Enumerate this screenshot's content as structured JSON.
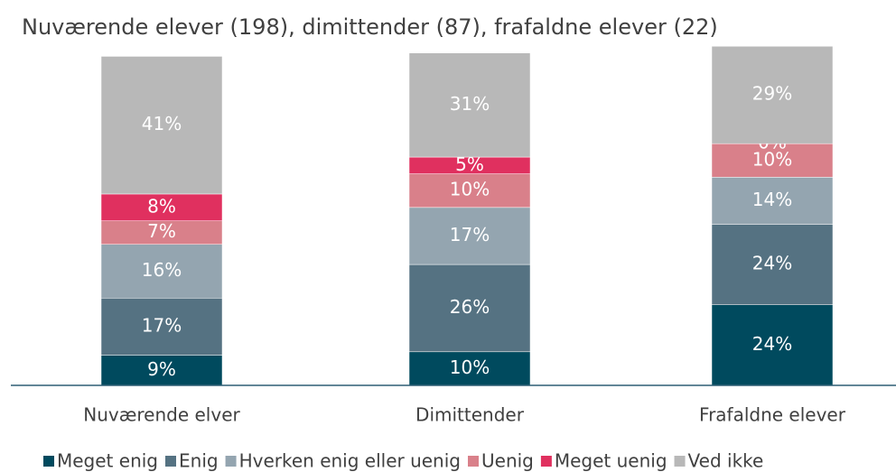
{
  "chart_data": {
    "type": "stacked_bar",
    "title": "Nuværende elever (198), dimittender (87), frafaldne elever (22)",
    "categories": [
      "Nuværende elver",
      "Dimittender",
      "Frafaldne elever"
    ],
    "ylim": [
      0,
      100
    ],
    "legend": "bottom",
    "series": [
      {
        "name": "Meget enig",
        "color": "#004a5e",
        "values": [
          9,
          10,
          24
        ],
        "value_labels": [
          "9%",
          "10%",
          "24%"
        ]
      },
      {
        "name": "Enig",
        "color": "#557282",
        "values": [
          17,
          26,
          24
        ],
        "value_labels": [
          "17%",
          "26%",
          "24%"
        ]
      },
      {
        "name": "Hverken enig eller uenig",
        "color": "#94a5b0",
        "values": [
          16,
          17,
          14
        ],
        "value_labels": [
          "16%",
          "17%",
          "14%"
        ]
      },
      {
        "name": "Uenig",
        "color": "#d9808a",
        "values": [
          7,
          10,
          10
        ],
        "value_labels": [
          "7%",
          "10%",
          "10%"
        ]
      },
      {
        "name": "Meget uenig",
        "color": "#e0305f",
        "values": [
          8,
          5,
          0
        ],
        "value_labels": [
          "8%",
          "5%",
          "0%"
        ]
      },
      {
        "name": "Ved ikke",
        "color": "#b8b8b8",
        "values": [
          41,
          31,
          29
        ],
        "value_labels": [
          "41%",
          "31%",
          "29%"
        ]
      }
    ]
  }
}
